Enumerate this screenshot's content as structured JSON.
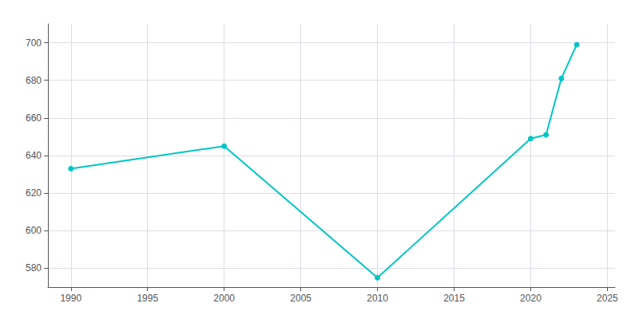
{
  "chart_data": {
    "type": "line",
    "x": [
      1990,
      2000,
      2010,
      2020,
      2021,
      2022,
      2023
    ],
    "values": [
      633,
      645,
      575,
      649,
      651,
      681,
      699
    ],
    "color": "#00C5C5",
    "marker": "circle",
    "xlim": [
      1988.5,
      2025.5
    ],
    "xticks": [
      1990,
      1995,
      2000,
      2005,
      2010,
      2015,
      2020,
      2025
    ],
    "ylim": [
      570,
      710
    ],
    "yticks": [
      580,
      600,
      620,
      640,
      660,
      680,
      700
    ],
    "grid": true
  }
}
